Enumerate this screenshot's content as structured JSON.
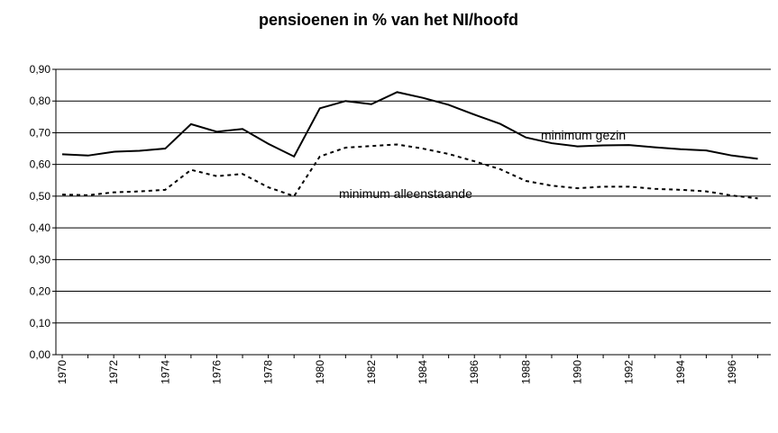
{
  "chart_data": {
    "type": "line",
    "title": "pensioenen in % van het NI/hoofd",
    "categories": [
      "1970",
      null,
      "1972",
      null,
      "1974",
      null,
      "1976",
      null,
      "1978",
      null,
      "1980",
      null,
      "1982",
      null,
      "1984",
      null,
      "1986",
      null,
      "1988",
      null,
      "1990",
      null,
      "1992",
      null,
      "1994",
      null,
      "1996",
      null
    ],
    "series": [
      {
        "name": "minimum gezin",
        "color": "#000000",
        "line_style": "solid",
        "values": [
          0.632,
          0.628,
          0.64,
          0.643,
          0.65,
          0.727,
          0.703,
          0.712,
          0.665,
          0.625,
          0.777,
          0.8,
          0.79,
          0.828,
          0.81,
          0.788,
          0.757,
          0.728,
          0.685,
          0.667,
          0.657,
          0.66,
          0.661,
          0.654,
          0.648,
          0.644,
          0.628,
          0.618
        ]
      },
      {
        "name": "minimum alleenstaande",
        "color": "#000000",
        "line_style": "dashed",
        "values": [
          0.505,
          0.503,
          0.512,
          0.515,
          0.52,
          0.583,
          0.563,
          0.57,
          0.528,
          0.5,
          0.625,
          0.653,
          0.658,
          0.663,
          0.65,
          0.633,
          0.61,
          0.585,
          0.548,
          0.533,
          0.525,
          0.53,
          0.53,
          0.523,
          0.52,
          0.515,
          0.502,
          0.493
        ]
      }
    ],
    "ylim": [
      0,
      0.9
    ],
    "yticks": [
      {
        "value": 0,
        "label": "0,00"
      },
      {
        "value": 0.1,
        "label": "0,10"
      },
      {
        "value": 0.2,
        "label": "0,20"
      },
      {
        "value": 0.3,
        "label": "0,30"
      },
      {
        "value": 0.4,
        "label": "0,40"
      },
      {
        "value": 0.5,
        "label": "0,50"
      },
      {
        "value": 0.6,
        "label": "0,60"
      },
      {
        "value": 0.7,
        "label": "0,70"
      },
      {
        "value": 0.8,
        "label": "0,80"
      },
      {
        "value": 0.9,
        "label": "0,90"
      }
    ],
    "grid": true
  }
}
